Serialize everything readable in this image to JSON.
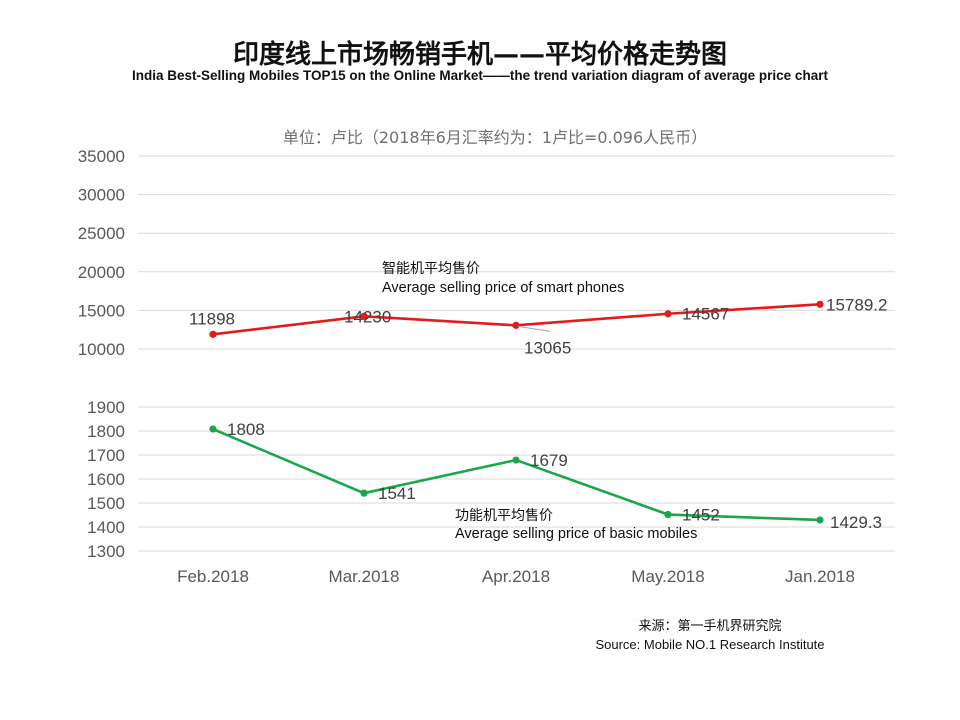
{
  "header": {
    "title": "印度线上市场畅销手机——平均价格走势图",
    "subtitle": "India Best-Selling  Mobiles TOP15 on the Online Market——the trend variation diagram of average price chart",
    "unit_note": "单位：卢比（2018年6月汇率约为：1卢比=0.096人民币）"
  },
  "source": {
    "cn": "来源：第一手机界研究院",
    "en": "Source: Mobile NO.1 Research Institute"
  },
  "chart_data": {
    "type": "line",
    "categories": [
      "Feb.2018",
      "Mar.2018",
      "Apr.2018",
      "May.2018",
      "Jan.2018"
    ],
    "grid": true,
    "legend": "none",
    "panels": [
      {
        "ylim": [
          10000,
          35000
        ],
        "yticks": [
          "10000",
          "15000",
          "20000",
          "25000",
          "30000",
          "35000"
        ],
        "series": [
          {
            "name": "智能机平均售价 Average selling price of smart phones",
            "name_cn": "智能机平均售价",
            "name_en": "Average selling price of smart phones",
            "color": "#e31b1b",
            "values": [
              11898,
              14230,
              13065,
              14567,
              15789.2
            ],
            "labels": [
              "11898",
              "14230",
              "13065",
              "14567",
              "15789.2"
            ]
          }
        ]
      },
      {
        "ylim": [
          1300,
          1900
        ],
        "yticks": [
          "1300",
          "1400",
          "1500",
          "1600",
          "1700",
          "1800",
          "1900"
        ],
        "series": [
          {
            "name": "功能机平均售价 Average selling price of basic mobiles",
            "name_cn": "功能机平均售价",
            "name_en": "Average selling price of basic mobiles",
            "color": "#1aa64a",
            "values": [
              1808,
              1541,
              1679,
              1452,
              1429.3
            ],
            "labels": [
              "1808",
              "1541",
              "1679",
              "1452",
              "1429.3"
            ]
          }
        ]
      }
    ]
  }
}
